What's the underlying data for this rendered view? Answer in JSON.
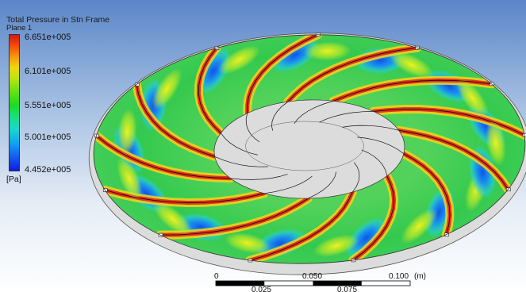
{
  "legend": {
    "title": "Total Pressure in Stn Frame",
    "plane": "Plane 1",
    "ticks": [
      "6.651e+005",
      "6.101e+005",
      "5.551e+005",
      "5.001e+005",
      "4.452e+005"
    ],
    "unit": "[Pa]"
  },
  "scale_bar": {
    "top_labels": [
      "0",
      "0.050",
      "0.100",
      "(m)"
    ],
    "bottom_labels": [
      "0.025",
      "0.075"
    ]
  },
  "colors": {
    "ring_green": "#2fd14a",
    "high_pressure": "#e8321a",
    "low_pressure": "#1a6fe0",
    "blade_line": "#111111"
  },
  "model": {
    "blade_count": 13
  }
}
